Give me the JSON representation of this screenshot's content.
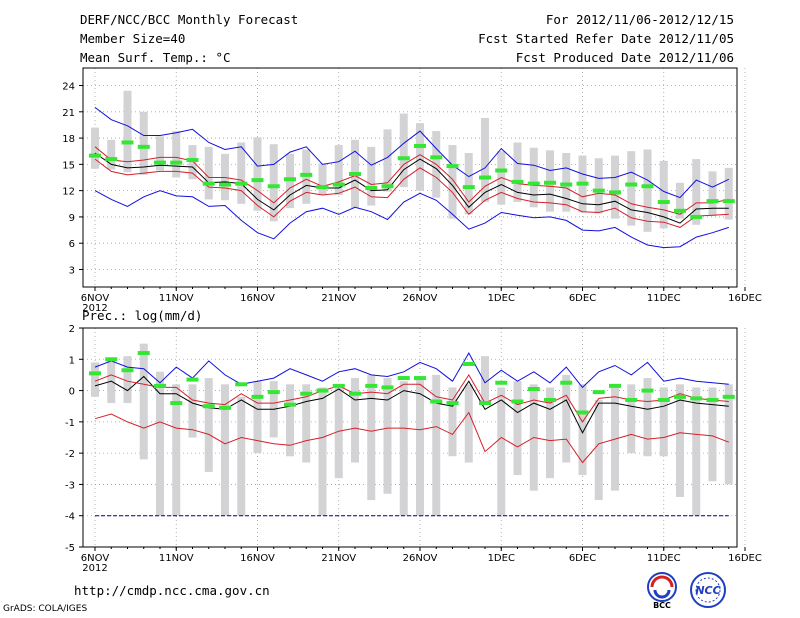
{
  "header": {
    "title": "DERF/NCC/BCC Monthly Forecast",
    "member_size": "Member Size=40",
    "variable": "Mean Surf. Temp.: °C",
    "period": "For 2012/11/06-2012/12/15",
    "started": "Fcst Started Refer Date 2012/11/05",
    "produced": "Fcst Produced Date 2012/11/06"
  },
  "footer": {
    "url": "http://cmdp.ncc.cma.gov.cn",
    "credit": "GrADS: COLA/IGES",
    "logo_bcc": "BCC",
    "logo_ncc": "NCC"
  },
  "colors": {
    "bar": "#d3d3d6",
    "green": "#35e635",
    "black": "#000000",
    "red": "#d4202a",
    "blue": "#1010e0",
    "grid": "#a0a0a0",
    "navy": "#000080"
  },
  "chart_data": [
    {
      "type": "line",
      "title": "Mean Surf. Temp.: °C",
      "x_tick_labels": [
        "6NOV",
        "11NOV",
        "16NOV",
        "21NOV",
        "26NOV",
        "1DEC",
        "6DEC",
        "11DEC",
        "16DEC"
      ],
      "x_year_label": "2012",
      "x_tick_days": [
        0,
        5,
        10,
        15,
        20,
        25,
        30,
        35,
        40
      ],
      "ylim": [
        1,
        26
      ],
      "y_ticks": [
        3,
        6,
        9,
        12,
        15,
        18,
        21,
        24
      ],
      "days": [
        0,
        1,
        2,
        3,
        4,
        5,
        6,
        7,
        8,
        9,
        10,
        11,
        12,
        13,
        14,
        15,
        16,
        17,
        18,
        19,
        20,
        21,
        22,
        23,
        24,
        25,
        26,
        27,
        28,
        29,
        30,
        31,
        32,
        33,
        34,
        35,
        36,
        37,
        38,
        39
      ],
      "range_bars": [
        [
          14.5,
          19.2
        ],
        [
          14.4,
          17.8
        ],
        [
          14.1,
          23.4
        ],
        [
          13.8,
          21.0
        ],
        [
          14.3,
          18.2
        ],
        [
          13.5,
          18.8
        ],
        [
          13.3,
          17.2
        ],
        [
          11.0,
          17.0
        ],
        [
          10.9,
          16.2
        ],
        [
          10.5,
          17.5
        ],
        [
          9.7,
          18.1
        ],
        [
          8.5,
          17.3
        ],
        [
          10.0,
          16.2
        ],
        [
          10.5,
          16.7
        ],
        [
          11.5,
          15.1
        ],
        [
          11.5,
          17.2
        ],
        [
          10.0,
          17.8
        ],
        [
          10.3,
          17.0
        ],
        [
          11.9,
          19.0
        ],
        [
          12.4,
          20.8
        ],
        [
          12.0,
          19.7
        ],
        [
          11.2,
          18.8
        ],
        [
          8.8,
          17.2
        ],
        [
          9.3,
          16.3
        ],
        [
          10.7,
          20.3
        ],
        [
          10.4,
          16.5
        ],
        [
          10.7,
          17.5
        ],
        [
          10.1,
          16.9
        ],
        [
          9.6,
          16.6
        ],
        [
          9.6,
          16.3
        ],
        [
          9.5,
          16.0
        ],
        [
          9.4,
          15.7
        ],
        [
          8.8,
          16.0
        ],
        [
          8.0,
          16.5
        ],
        [
          7.3,
          16.7
        ],
        [
          7.7,
          15.4
        ],
        [
          8.8,
          12.9
        ],
        [
          8.1,
          15.6
        ],
        [
          9.1,
          14.2
        ],
        [
          8.7,
          14.6
        ]
      ],
      "series": [
        {
          "name": "control",
          "color": "green",
          "values": [
            16.0,
            15.6,
            17.5,
            17.0,
            15.2,
            15.2,
            15.5,
            12.8,
            12.7,
            12.8,
            13.2,
            12.5,
            13.3,
            13.8,
            12.4,
            12.7,
            13.9,
            12.3,
            12.5,
            15.7,
            17.1,
            15.8,
            14.8,
            12.4,
            13.5,
            14.3,
            13.0,
            12.8,
            12.9,
            12.7,
            12.8,
            12.0,
            11.8,
            12.7,
            12.5,
            10.7,
            9.7,
            9.0,
            10.8,
            10.8
          ]
        },
        {
          "name": "ensemble mean",
          "color": "black",
          "values": [
            16.3,
            15.0,
            14.6,
            14.7,
            14.9,
            14.8,
            14.7,
            12.9,
            13.0,
            12.8,
            11.0,
            9.8,
            11.5,
            12.6,
            12.3,
            12.3,
            13.2,
            12.0,
            12.1,
            14.4,
            15.6,
            14.5,
            12.6,
            10.1,
            11.8,
            12.7,
            11.8,
            11.5,
            11.6,
            11.1,
            10.5,
            10.4,
            10.8,
            9.8,
            9.5,
            9.0,
            8.3,
            9.9,
            10.0,
            10.0
          ]
        },
        {
          "name": "upper ensemble",
          "color": "red",
          "values": [
            17.0,
            15.5,
            15.3,
            15.5,
            15.8,
            15.8,
            15.4,
            13.5,
            13.5,
            13.2,
            12.0,
            10.6,
            12.3,
            13.3,
            12.5,
            13.0,
            13.7,
            12.7,
            12.9,
            15.0,
            16.1,
            15.0,
            13.3,
            10.7,
            12.5,
            13.5,
            12.8,
            12.6,
            12.5,
            12.3,
            11.3,
            11.7,
            11.5,
            10.5,
            10.1,
            9.8,
            9.3,
            10.6,
            10.6,
            11.0
          ]
        },
        {
          "name": "lower ensemble",
          "color": "red",
          "values": [
            15.6,
            14.2,
            13.8,
            14.0,
            14.2,
            14.2,
            14.0,
            12.4,
            12.3,
            12.0,
            10.3,
            9.0,
            10.8,
            11.8,
            11.5,
            11.7,
            12.4,
            11.3,
            11.2,
            13.3,
            14.6,
            13.5,
            11.8,
            9.3,
            10.9,
            11.8,
            11.1,
            10.7,
            10.6,
            10.4,
            9.6,
            9.5,
            10.0,
            8.9,
            8.5,
            8.4,
            7.8,
            9.1,
            9.2,
            9.3
          ]
        },
        {
          "name": "upper limit",
          "color": "blue",
          "values": [
            21.5,
            20.1,
            19.4,
            18.3,
            18.3,
            18.6,
            19.0,
            17.5,
            16.7,
            17.0,
            14.8,
            15.0,
            16.4,
            17.0,
            15.0,
            15.3,
            16.5,
            14.9,
            15.8,
            17.4,
            18.8,
            16.8,
            14.9,
            13.6,
            14.6,
            16.8,
            15.1,
            14.9,
            14.3,
            14.6,
            13.9,
            13.4,
            13.5,
            14.1,
            13.2,
            11.9,
            11.2,
            13.2,
            12.4,
            13.3
          ]
        },
        {
          "name": "lower limit",
          "color": "blue",
          "values": [
            12.0,
            11.0,
            10.2,
            11.3,
            12.0,
            11.4,
            11.3,
            10.2,
            10.3,
            8.6,
            7.2,
            6.5,
            8.3,
            9.6,
            10.0,
            9.3,
            10.1,
            9.6,
            8.7,
            10.7,
            11.7,
            10.9,
            9.3,
            7.6,
            8.3,
            9.5,
            9.2,
            8.9,
            9.0,
            8.6,
            7.5,
            7.4,
            7.8,
            6.7,
            5.8,
            5.5,
            5.6,
            6.7,
            7.2,
            7.8
          ]
        }
      ]
    },
    {
      "type": "line",
      "title": "Prec.: log(mm/d)",
      "x_tick_labels": [
        "6NOV",
        "11NOV",
        "16NOV",
        "21NOV",
        "26NOV",
        "1DEC",
        "6DEC",
        "11DEC",
        "16DEC"
      ],
      "x_year_label": "2012",
      "x_tick_days": [
        0,
        5,
        10,
        15,
        20,
        25,
        30,
        35,
        40
      ],
      "ylim": [
        -5,
        2
      ],
      "y_ticks": [
        -5,
        -4,
        -3,
        -2,
        -1,
        0,
        1,
        2
      ],
      "days": [
        0,
        1,
        2,
        3,
        4,
        5,
        6,
        7,
        8,
        9,
        10,
        11,
        12,
        13,
        14,
        15,
        16,
        17,
        18,
        19,
        20,
        21,
        22,
        23,
        24,
        25,
        26,
        27,
        28,
        29,
        30,
        31,
        32,
        33,
        34,
        35,
        36,
        37,
        38,
        39
      ],
      "range_bars": [
        [
          -0.2,
          0.9
        ],
        [
          -0.4,
          1.0
        ],
        [
          -0.4,
          1.1
        ],
        [
          -2.2,
          1.5
        ],
        [
          -4.0,
          0.6
        ],
        [
          -4.0,
          0.2
        ],
        [
          -1.5,
          0.2
        ],
        [
          -2.6,
          0.4
        ],
        [
          -4.0,
          0.2
        ],
        [
          -4.0,
          -0.2
        ],
        [
          -2.0,
          0.3
        ],
        [
          -1.5,
          0.3
        ],
        [
          -2.1,
          0.2
        ],
        [
          -2.3,
          0.2
        ],
        [
          -4.0,
          0.1
        ],
        [
          -2.8,
          0.2
        ],
        [
          -2.3,
          0.4
        ],
        [
          -3.5,
          0.5
        ],
        [
          -3.3,
          0.4
        ],
        [
          -4.0,
          0.3
        ],
        [
          -4.0,
          0.4
        ],
        [
          -4.0,
          0.5
        ],
        [
          -2.1,
          0.1
        ],
        [
          -2.3,
          0.2
        ],
        [
          -0.4,
          1.1
        ],
        [
          -4.0,
          0.1
        ],
        [
          -2.7,
          0.3
        ],
        [
          -3.2,
          0.2
        ],
        [
          -2.8,
          0.1
        ],
        [
          -2.3,
          0.5
        ],
        [
          -2.7,
          0.2
        ],
        [
          -3.5,
          -0.3
        ],
        [
          -3.2,
          0.2
        ],
        [
          -2.0,
          0.2
        ],
        [
          -2.1,
          0.4
        ],
        [
          -2.1,
          0.1
        ],
        [
          -3.4,
          0.2
        ],
        [
          -4.0,
          0.1
        ],
        [
          -2.9,
          0.1
        ],
        [
          -3.0,
          0.2
        ]
      ],
      "series": [
        {
          "name": "control",
          "color": "green",
          "values": [
            0.55,
            1.0,
            0.65,
            1.2,
            0.15,
            -0.4,
            0.35,
            -0.5,
            -0.55,
            0.2,
            -0.2,
            -0.05,
            -0.45,
            -0.1,
            0.0,
            0.15,
            -0.1,
            0.15,
            0.1,
            0.4,
            0.4,
            -0.35,
            -0.4,
            0.85,
            -0.4,
            0.25,
            -0.35,
            0.05,
            -0.3,
            0.25,
            -0.7,
            -0.05,
            0.15,
            -0.3,
            0.0,
            -0.3,
            -0.2,
            -0.25,
            -0.3,
            -0.2
          ]
        },
        {
          "name": "ensemble mean",
          "color": "black",
          "values": [
            0.15,
            0.3,
            0.0,
            0.45,
            -0.1,
            -0.1,
            -0.4,
            -0.55,
            -0.6,
            -0.3,
            -0.6,
            -0.6,
            -0.5,
            -0.35,
            -0.25,
            0.05,
            -0.3,
            -0.25,
            -0.3,
            0.0,
            -0.1,
            -0.4,
            -0.5,
            0.3,
            -0.6,
            -0.3,
            -0.7,
            -0.4,
            -0.6,
            -0.3,
            -1.35,
            -0.4,
            -0.4,
            -0.5,
            -0.6,
            -0.5,
            -0.3,
            -0.4,
            -0.45,
            -0.5
          ]
        },
        {
          "name": "upper ensemble",
          "color": "red",
          "values": [
            0.3,
            0.5,
            0.3,
            0.2,
            0.1,
            0.1,
            -0.3,
            -0.4,
            -0.45,
            -0.1,
            -0.4,
            -0.4,
            -0.3,
            -0.2,
            0.0,
            0.15,
            -0.1,
            -0.05,
            -0.1,
            0.2,
            0.2,
            -0.2,
            -0.3,
            0.5,
            -0.4,
            -0.15,
            -0.45,
            -0.3,
            -0.4,
            -0.15,
            -1.0,
            -0.25,
            -0.2,
            -0.3,
            -0.35,
            -0.3,
            -0.1,
            -0.25,
            -0.3,
            -0.35
          ]
        },
        {
          "name": "lower ensemble",
          "color": "red",
          "values": [
            -0.9,
            -0.75,
            -1.0,
            -1.2,
            -1.0,
            -1.2,
            -1.25,
            -1.4,
            -1.7,
            -1.5,
            -1.6,
            -1.7,
            -1.75,
            -1.6,
            -1.5,
            -1.3,
            -1.2,
            -1.3,
            -1.2,
            -1.2,
            -1.25,
            -1.15,
            -1.4,
            -0.7,
            -1.95,
            -1.5,
            -1.8,
            -1.5,
            -1.6,
            -1.55,
            -2.3,
            -1.7,
            -1.55,
            -1.4,
            -1.55,
            -1.5,
            -1.35,
            -1.4,
            -1.45,
            -1.65
          ]
        },
        {
          "name": "upper limit",
          "color": "blue",
          "values": [
            0.75,
            0.95,
            0.75,
            0.7,
            0.25,
            0.75,
            0.4,
            0.95,
            0.5,
            0.2,
            0.3,
            0.4,
            0.7,
            0.5,
            0.3,
            0.6,
            0.7,
            0.5,
            0.45,
            0.6,
            0.9,
            0.7,
            0.3,
            1.2,
            0.25,
            0.65,
            0.3,
            0.6,
            0.25,
            0.75,
            0.1,
            0.6,
            0.8,
            0.5,
            0.9,
            0.3,
            0.4,
            0.3,
            0.25,
            0.2
          ]
        },
        {
          "name": "lower limit",
          "color": "navy",
          "values": [
            -4,
            -4,
            -4,
            -4,
            -4,
            -4,
            -4,
            -4,
            -4,
            -4,
            -4,
            -4,
            -4,
            -4,
            -4,
            -4,
            -4,
            -4,
            -4,
            -4,
            -4,
            -4,
            -4,
            -4,
            -4,
            -4,
            -4,
            -4,
            -4,
            -4,
            -4,
            -4,
            -4,
            -4,
            -4,
            -4,
            -4,
            -4,
            -4,
            -4
          ]
        }
      ]
    }
  ]
}
